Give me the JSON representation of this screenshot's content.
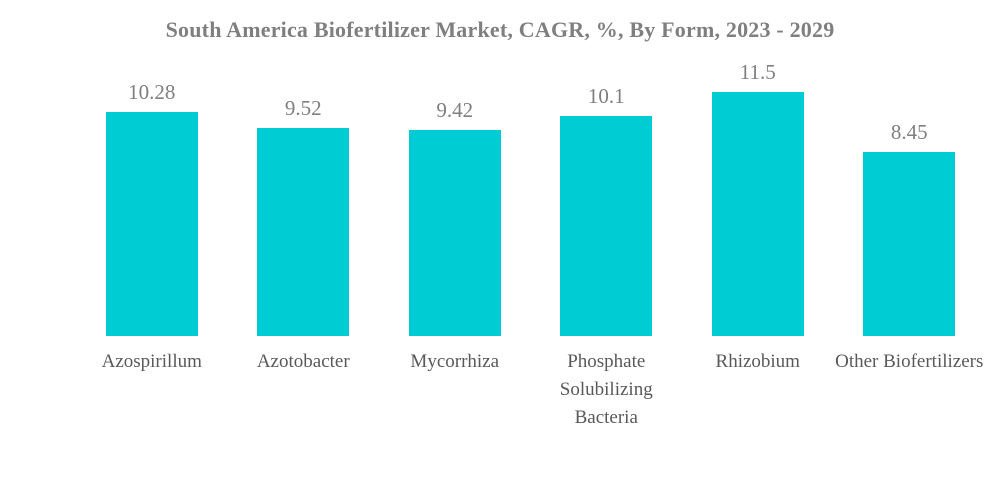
{
  "title": "South America Biofertilizer Market, CAGR, %, By Form, 2023 - 2029",
  "chart_data": {
    "type": "bar",
    "title": "South America Biofertilizer Market, CAGR, %, By Form, 2023 - 2029",
    "categories": [
      "Azospirillum",
      "Azotobacter",
      "Mycorrhiza",
      "Phosphate Solubilizing Bacteria",
      "Rhizobium",
      "Other Biofertilizers"
    ],
    "values": [
      10.28,
      9.52,
      9.42,
      10.1,
      11.5,
      8.45
    ],
    "data_labels": [
      "10.28",
      "9.52",
      "9.42",
      "10.1",
      "11.5",
      "8.45"
    ],
    "xlabel": "",
    "ylabel": "",
    "ylim": [
      0,
      12.65
    ],
    "grid": false,
    "legend": false,
    "axes_visible": false,
    "data_labels_position": "above-bar",
    "bar_color": "#00ccd3",
    "title_color": "#7f7f7f",
    "data_label_color": "#7f7f7f",
    "category_label_color": "#595959",
    "background_color": "#ffffff"
  }
}
